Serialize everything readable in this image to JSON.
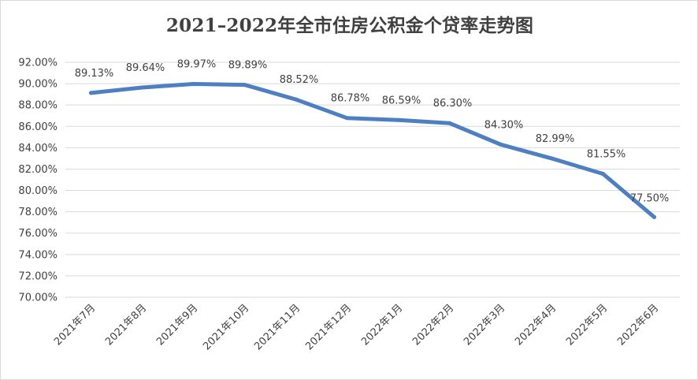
{
  "chart_data": {
    "type": "line",
    "title": "2021–2022年全市住房公积金个贷率走势图",
    "xlabel": "",
    "ylabel": "",
    "categories": [
      "2021年7月",
      "2021年8月",
      "2021年9月",
      "2021年10月",
      "2021年11月",
      "2021年12月",
      "2022年1月",
      "2022年2月",
      "2022年3月",
      "2022年4月",
      "2022年5月",
      "2022年6月"
    ],
    "series": [
      {
        "values": [
          89.13,
          89.64,
          89.97,
          89.89,
          88.52,
          86.78,
          86.59,
          86.3,
          84.3,
          82.99,
          81.55,
          77.5
        ],
        "labels": [
          "89.13%",
          "89.64%",
          "89.97%",
          "89.89%",
          "88.52%",
          "86.78%",
          "86.59%",
          "86.30%",
          "84.30%",
          "82.99%",
          "81.55%",
          "77.50%"
        ],
        "color": "#4e7fc0"
      }
    ],
    "ylim": [
      70,
      92
    ],
    "yticks": [
      "70.00%",
      "72.00%",
      "74.00%",
      "76.00%",
      "78.00%",
      "80.00%",
      "82.00%",
      "84.00%",
      "86.00%",
      "88.00%",
      "90.00%",
      "92.00%"
    ],
    "grid": true,
    "legend": "none"
  }
}
